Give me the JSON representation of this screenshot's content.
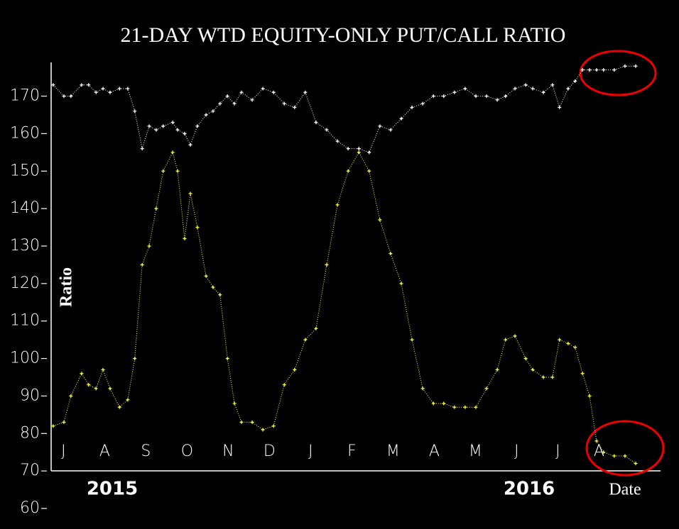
{
  "chart_data": {
    "type": "line",
    "title": "21-DAY WTD EQUITY-ONLY PUT/CALL RATIO",
    "y_label": "Ratio",
    "x_label": "Date",
    "year_labels": [
      "2015",
      "2016"
    ],
    "x": [
      0.25,
      0.51,
      0.68,
      0.94,
      1.11,
      1.29,
      1.46,
      1.63,
      1.86,
      2.06,
      2.23,
      2.41,
      2.58,
      2.75,
      2.92,
      3.15,
      3.27,
      3.44,
      3.58,
      3.75,
      3.96,
      4.13,
      4.3,
      4.48,
      4.65,
      4.82,
      5.08,
      5.34,
      5.6,
      5.86,
      6.11,
      6.37,
      6.63,
      6.89,
      7.15,
      7.41,
      7.67,
      7.92,
      8.18,
      8.44,
      8.7,
      8.96,
      9.22,
      9.48,
      9.73,
      9.99,
      10.25,
      10.51,
      10.77,
      11.03,
      11.23,
      11.46,
      11.72,
      11.89,
      12.15,
      12.37,
      12.54,
      12.75,
      12.92,
      13.1,
      13.27,
      13.44,
      13.61,
      13.87,
      14.13,
      14.39
    ],
    "series": [
      {
        "color": "#ffffff",
        "values": [
          173,
          170,
          170,
          173,
          173,
          171,
          172,
          171,
          172,
          172,
          166,
          156,
          162,
          161,
          162,
          163,
          161,
          160,
          157,
          162,
          165,
          166,
          168,
          170,
          168,
          171,
          169,
          172,
          171,
          168,
          167,
          171,
          163,
          161,
          158,
          156,
          156,
          155,
          162,
          161,
          164,
          167,
          168,
          170,
          170,
          171,
          172,
          170,
          170,
          169,
          170,
          172,
          173,
          172,
          171,
          173,
          167,
          172,
          174,
          177,
          177,
          177,
          177,
          177,
          178,
          178
        ]
      },
      {
        "color": "#ffff33",
        "values": [
          82,
          83,
          90,
          96,
          93,
          92,
          97,
          92,
          87,
          89,
          100,
          125,
          130,
          140,
          150,
          155,
          150,
          132,
          144,
          135,
          122,
          119,
          117,
          100,
          88,
          83,
          83,
          81,
          82,
          93,
          97,
          105,
          108,
          125,
          141,
          150,
          155,
          150,
          137,
          128,
          120,
          105,
          92,
          88,
          88,
          87,
          87,
          87,
          92,
          97,
          105,
          106,
          100,
          97,
          95,
          95,
          105,
          104,
          103,
          96,
          90,
          78,
          75,
          74,
          74,
          72
        ]
      }
    ],
    "xlim": [
      0.2,
      15.0
    ],
    "xticks": [
      {
        "value": 0.5,
        "label": "J"
      },
      {
        "value": 1.5,
        "label": "A"
      },
      {
        "value": 2.5,
        "label": "S"
      },
      {
        "value": 3.5,
        "label": "O"
      },
      {
        "value": 4.5,
        "label": "N"
      },
      {
        "value": 5.5,
        "label": "D"
      },
      {
        "value": 6.5,
        "label": "J"
      },
      {
        "value": 7.5,
        "label": "F"
      },
      {
        "value": 8.5,
        "label": "M"
      },
      {
        "value": 9.5,
        "label": "A"
      },
      {
        "value": 10.5,
        "label": "M"
      },
      {
        "value": 11.5,
        "label": "J"
      },
      {
        "value": 12.5,
        "label": "J"
      },
      {
        "value": 13.5,
        "label": "A"
      }
    ],
    "ylim": [
      60,
      179
    ],
    "yticks": [
      60,
      70,
      80,
      90,
      100,
      110,
      120,
      130,
      140,
      150,
      160,
      170
    ],
    "grid": false
  }
}
